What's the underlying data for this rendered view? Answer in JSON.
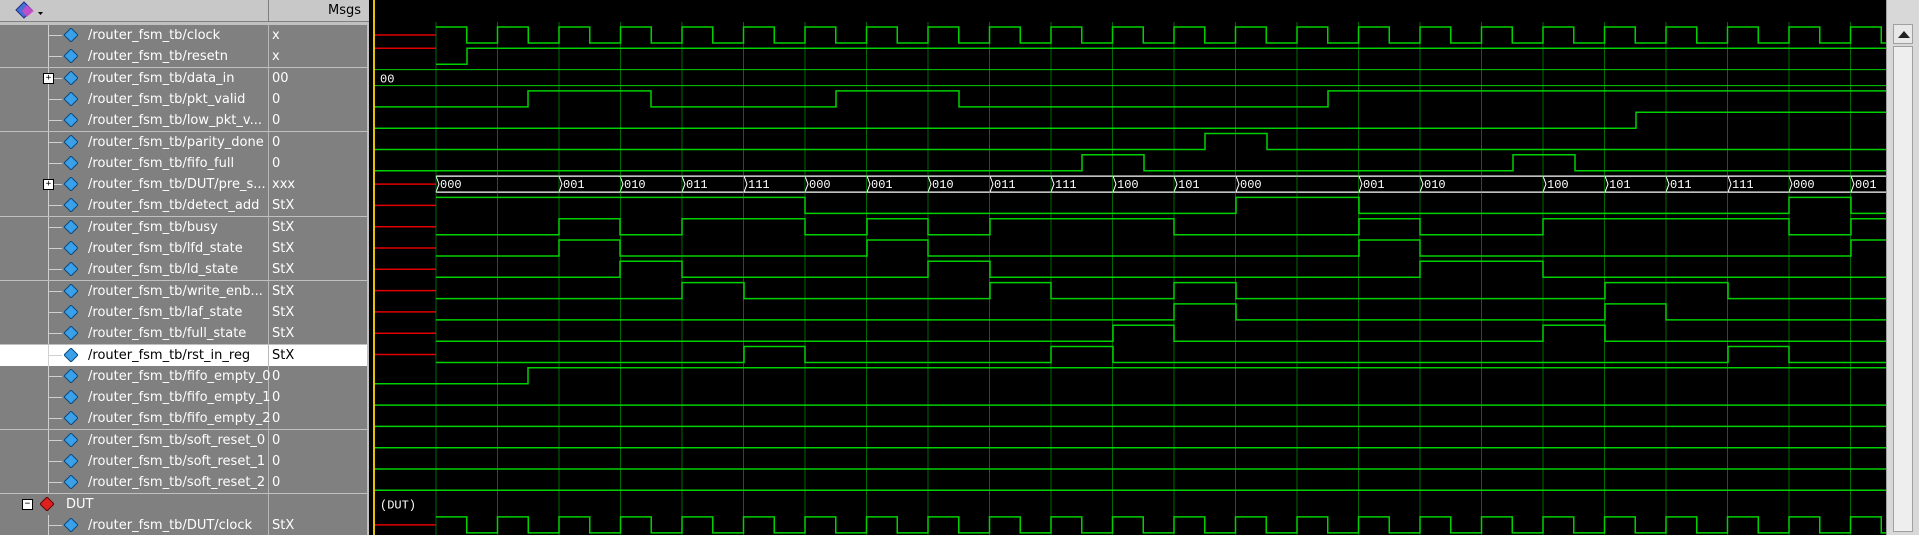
{
  "header": {
    "msgs_label": "Msgs",
    "toolbar_icon": "wave-window-icon"
  },
  "colors": {
    "wave": "#00d000",
    "undefined_wave": "#e00000",
    "cursor": "#e6c300",
    "selected_row": "#ffffff"
  },
  "signals": [
    {
      "name": "/router_fsm_tb/clock",
      "value": "x",
      "icon": "signal-diamond-icon"
    },
    {
      "name": "/router_fsm_tb/resetn",
      "value": "x",
      "icon": "signal-diamond-icon"
    },
    {
      "name": "/router_fsm_tb/data_in",
      "value": "00",
      "icon": "signal-diamond-icon",
      "expandable": true
    },
    {
      "name": "/router_fsm_tb/pkt_valid",
      "value": "0",
      "icon": "signal-diamond-icon"
    },
    {
      "name": "/router_fsm_tb/low_pkt_v...",
      "value": "0",
      "icon": "signal-diamond-icon"
    },
    {
      "name": "/router_fsm_tb/parity_done",
      "value": "0",
      "icon": "signal-diamond-icon"
    },
    {
      "name": "/router_fsm_tb/fifo_full",
      "value": "0",
      "icon": "signal-diamond-icon"
    },
    {
      "name": "/router_fsm_tb/DUT/pre_s...",
      "value": "xxx",
      "icon": "signal-diamond-icon",
      "expandable": true
    },
    {
      "name": "/router_fsm_tb/detect_add",
      "value": "StX",
      "icon": "signal-diamond-icon"
    },
    {
      "name": "/router_fsm_tb/busy",
      "value": "StX",
      "icon": "signal-diamond-icon"
    },
    {
      "name": "/router_fsm_tb/lfd_state",
      "value": "StX",
      "icon": "signal-diamond-icon"
    },
    {
      "name": "/router_fsm_tb/ld_state",
      "value": "StX",
      "icon": "signal-diamond-icon"
    },
    {
      "name": "/router_fsm_tb/write_enb...",
      "value": "StX",
      "icon": "signal-diamond-icon"
    },
    {
      "name": "/router_fsm_tb/laf_state",
      "value": "StX",
      "icon": "signal-diamond-icon"
    },
    {
      "name": "/router_fsm_tb/full_state",
      "value": "StX",
      "icon": "signal-diamond-icon"
    },
    {
      "name": "/router_fsm_tb/rst_in_reg",
      "value": "StX",
      "icon": "signal-diamond-icon",
      "selected": true
    },
    {
      "name": "/router_fsm_tb/fifo_empty_0",
      "value": "0",
      "icon": "signal-diamond-icon"
    },
    {
      "name": "/router_fsm_tb/fifo_empty_1",
      "value": "0",
      "icon": "signal-diamond-icon"
    },
    {
      "name": "/router_fsm_tb/fifo_empty_2",
      "value": "0",
      "icon": "signal-diamond-icon"
    },
    {
      "name": "/router_fsm_tb/soft_reset_0",
      "value": "0",
      "icon": "signal-diamond-icon"
    },
    {
      "name": "/router_fsm_tb/soft_reset_1",
      "value": "0",
      "icon": "signal-diamond-icon"
    },
    {
      "name": "/router_fsm_tb/soft_reset_2",
      "value": "0",
      "icon": "signal-diamond-icon"
    },
    {
      "name": "DUT",
      "value": "",
      "icon": "instance-diamond-icon",
      "group": true
    },
    {
      "name": "/router_fsm_tb/DUT/clock",
      "value": "StX",
      "icon": "signal-diamond-icon"
    }
  ],
  "waveforms": {
    "data_in_label": "00",
    "state_bus_labels": [
      "000",
      "001",
      "010",
      "011",
      "111",
      "000",
      "001",
      "010",
      "011",
      "111",
      "100",
      "101",
      "000",
      "001",
      "010",
      "100",
      "101",
      "011",
      "111",
      "000",
      "001"
    ],
    "dut_group_label": "(DUT)"
  }
}
